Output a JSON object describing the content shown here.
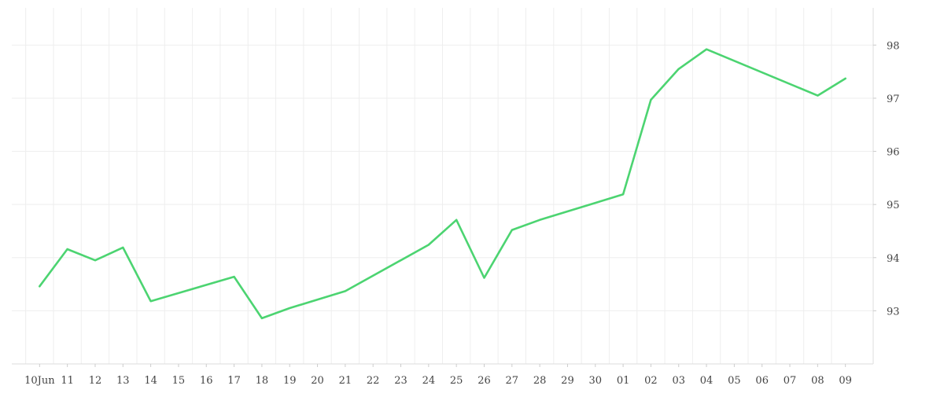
{
  "chart_data": {
    "type": "line",
    "title": "",
    "xlabel": "",
    "ylabel": "",
    "x_tick_labels": [
      "10Jun",
      "11",
      "12",
      "13",
      "14",
      "15",
      "16",
      "17",
      "18",
      "19",
      "20",
      "21",
      "22",
      "23",
      "24",
      "25",
      "26",
      "27",
      "28",
      "29",
      "30",
      "01",
      "02",
      "03",
      "04",
      "05",
      "06",
      "07",
      "08",
      "09"
    ],
    "y_ticks": [
      93,
      94,
      95,
      96,
      97,
      98
    ],
    "ylim": [
      92,
      98.7
    ],
    "xlim": [
      "2024-06-09T12:00",
      "2024-07-10T12:00"
    ],
    "grid": true,
    "y_axis_position": "right",
    "line_color": "#4cd471",
    "series": [
      {
        "x": [
          "2024-06-10",
          "2024-06-11",
          "2024-06-12",
          "2024-06-13",
          "2024-06-14",
          "2024-06-17",
          "2024-06-18",
          "2024-06-19",
          "2024-06-21",
          "2024-06-24",
          "2024-06-25",
          "2024-06-26",
          "2024-06-27",
          "2024-06-28",
          "2024-07-01",
          "2024-07-02",
          "2024-07-03",
          "2024-07-04",
          "2024-07-08",
          "2024-07-09"
        ],
        "values": [
          93.46,
          94.16,
          93.95,
          94.19,
          93.18,
          93.64,
          92.86,
          93.05,
          93.37,
          94.24,
          94.71,
          93.62,
          94.52,
          94.71,
          95.19,
          96.97,
          97.55,
          97.92,
          97.05,
          97.37
        ]
      }
    ]
  }
}
